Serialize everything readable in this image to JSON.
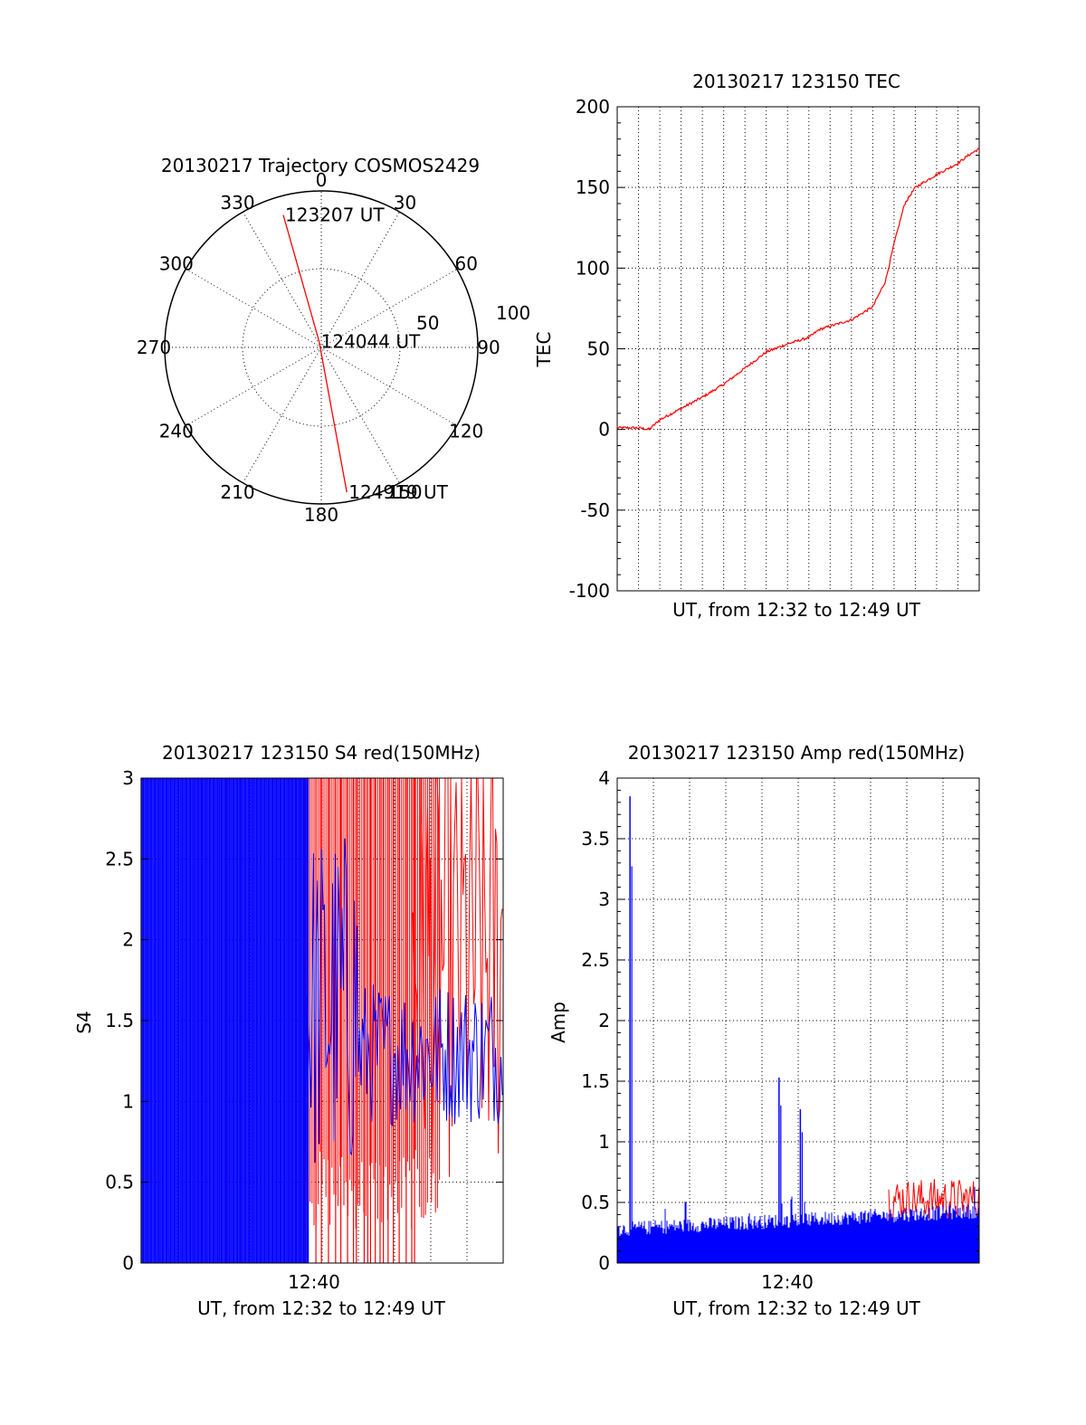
{
  "chart_data": [
    {
      "type": "polar",
      "title": "20130217 Trajectory COSMOS2429",
      "angle_labels": [
        "0",
        "30",
        "60",
        "90",
        "120",
        "150",
        "180",
        "210",
        "240",
        "270",
        "300",
        "330"
      ],
      "radial_labels": [
        "50",
        "100"
      ],
      "trajectory": [
        {
          "label": "123207 UT",
          "az": 344,
          "r": 88
        },
        {
          "label": "124044 UT",
          "az": 340,
          "r": 4
        },
        {
          "label": "124919 UT",
          "az": 170,
          "r": 94
        }
      ],
      "line_color": "#ff0000"
    },
    {
      "type": "line",
      "title": "20130217 123150 TEC",
      "xlabel": "UT, from 12:32 to 12:49 UT",
      "ylabel": "TEC",
      "ylim": [
        -100,
        200
      ],
      "yticks": [
        "200",
        "150",
        "100",
        "50",
        "0",
        "-50",
        "-100"
      ],
      "series": [
        {
          "color": "#ff0000",
          "x_min": [
            0,
            1,
            1.5,
            2,
            3,
            4,
            5,
            6,
            7,
            8,
            9,
            9.5,
            10,
            11,
            12,
            12.6,
            13,
            13.5,
            14,
            15,
            16,
            16.5,
            17
          ],
          "values": [
            1,
            1,
            0,
            6,
            13,
            20,
            28,
            38,
            48,
            53,
            57,
            62,
            64,
            68,
            76,
            92,
            115,
            140,
            150,
            158,
            165,
            170,
            174
          ]
        }
      ]
    },
    {
      "type": "line",
      "title": "20130217 123150 S4 red(150MHz)",
      "xlabel": "UT, from 12:32 to 12:49 UT",
      "ylabel": "S4",
      "ylim": [
        0,
        3
      ],
      "yticks": [
        "3",
        "2.5",
        "2",
        "1.5",
        "1",
        "0.5",
        "0"
      ],
      "xtick_label": "12:40",
      "colors": [
        "#ff0000",
        "#0000ff"
      ]
    },
    {
      "type": "line",
      "title": "20130217 123150 Amp red(150MHz)",
      "xlabel": "UT, from 12:32 to 12:49 UT",
      "ylabel": "Amp",
      "ylim": [
        0,
        4
      ],
      "yticks": [
        "4",
        "3.5",
        "3",
        "2.5",
        "2",
        "1.5",
        "1",
        "0.5",
        "0"
      ],
      "xtick_label": "12:40",
      "colors": [
        "#ff0000",
        "#0000ff"
      ],
      "peaks": [
        {
          "x_min": 0.6,
          "value": 3.85
        },
        {
          "x_min": 7.6,
          "value": 1.53
        },
        {
          "x_min": 8.6,
          "value": 1.27
        }
      ]
    }
  ]
}
